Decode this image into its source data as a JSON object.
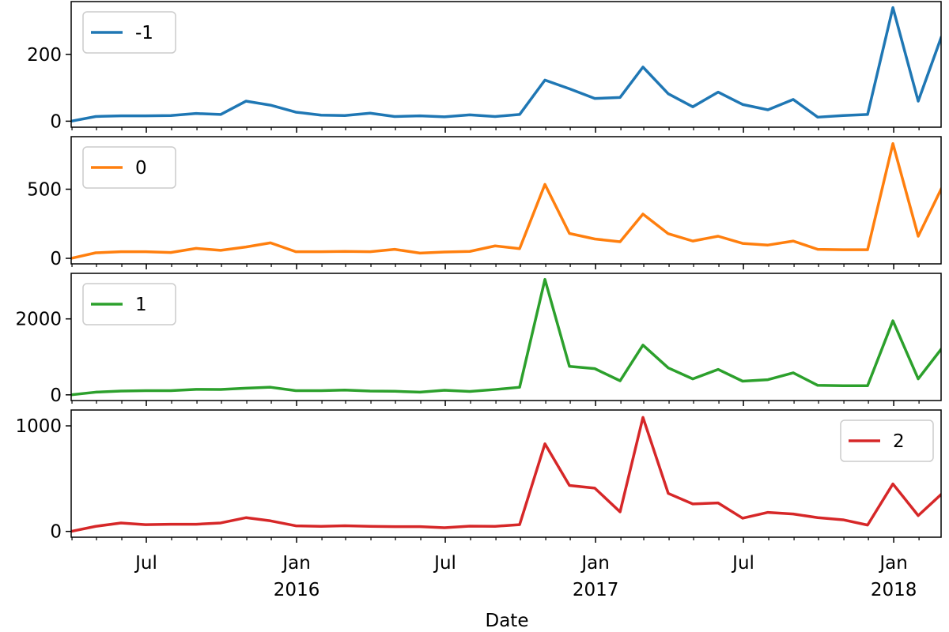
{
  "chart_data": {
    "type": "line",
    "layout": "stacked-subplots",
    "sharex": true,
    "xlabel": "Date",
    "x": [
      "2015-03-31",
      "2015-04-30",
      "2015-05-31",
      "2015-06-30",
      "2015-07-31",
      "2015-08-31",
      "2015-09-30",
      "2015-10-31",
      "2015-11-30",
      "2015-12-31",
      "2016-01-31",
      "2016-02-29",
      "2016-03-31",
      "2016-04-30",
      "2016-05-31",
      "2016-06-30",
      "2016-07-31",
      "2016-08-31",
      "2016-09-30",
      "2016-10-31",
      "2016-11-30",
      "2016-12-31",
      "2017-01-31",
      "2017-02-28",
      "2017-03-31",
      "2017-04-30",
      "2017-05-31",
      "2017-06-30",
      "2017-07-31",
      "2017-08-31",
      "2017-09-30",
      "2017-10-31",
      "2017-11-30",
      "2017-12-31",
      "2018-01-31",
      "2018-02-28"
    ],
    "xlim": [
      "2015-03-31",
      "2018-02-28"
    ],
    "x_major_ticks": [
      {
        "date": "2015-07-01",
        "label": "Jul"
      },
      {
        "date": "2016-01-01",
        "label": "Jan\n2016"
      },
      {
        "date": "2016-07-01",
        "label": "Jul"
      },
      {
        "date": "2017-01-01",
        "label": "Jan\n2017"
      },
      {
        "date": "2017-07-01",
        "label": "Jul"
      },
      {
        "date": "2018-01-01",
        "label": "Jan\n2018"
      }
    ],
    "panels": [
      {
        "series": {
          "name": "-1",
          "color": "#1f77b4",
          "values": [
            0,
            14,
            16,
            16,
            17,
            23,
            20,
            60,
            48,
            27,
            18,
            17,
            24,
            14,
            16,
            13,
            19,
            14,
            20,
            123,
            97,
            68,
            71,
            162,
            82,
            43,
            87,
            50,
            34,
            65,
            12,
            17,
            20,
            340,
            60,
            250
          ]
        },
        "ylim": [
          -18,
          358
        ],
        "yticks": [
          0,
          200
        ],
        "legend_loc": "upper left"
      },
      {
        "series": {
          "name": "0",
          "color": "#ff7f0e",
          "values": [
            0,
            40,
            48,
            48,
            42,
            72,
            58,
            82,
            112,
            48,
            48,
            50,
            48,
            65,
            38,
            46,
            50,
            90,
            70,
            535,
            180,
            140,
            120,
            320,
            178,
            125,
            160,
            108,
            96,
            125,
            65,
            62,
            62,
            830,
            160,
            500
          ]
        },
        "ylim": [
          -40,
          880
        ],
        "yticks": [
          0,
          500
        ],
        "legend_loc": "upper left"
      },
      {
        "series": {
          "name": "1",
          "color": "#2ca02c",
          "values": [
            0,
            70,
            100,
            110,
            110,
            145,
            140,
            175,
            200,
            110,
            110,
            125,
            100,
            95,
            70,
            120,
            90,
            140,
            200,
            3040,
            750,
            690,
            370,
            1310,
            710,
            420,
            670,
            360,
            400,
            580,
            250,
            240,
            240,
            1950,
            420,
            1200
          ]
        },
        "ylim": [
          -150,
          3200
        ],
        "yticks": [
          0,
          2000
        ],
        "legend_loc": "upper left"
      },
      {
        "series": {
          "name": "2",
          "color": "#d62728",
          "values": [
            0,
            48,
            80,
            64,
            68,
            68,
            80,
            130,
            100,
            53,
            48,
            54,
            48,
            45,
            45,
            35,
            50,
            48,
            64,
            830,
            435,
            410,
            185,
            1080,
            360,
            260,
            270,
            125,
            180,
            165,
            130,
            110,
            60,
            450,
            150,
            350
          ]
        },
        "ylim": [
          -55,
          1150
        ],
        "yticks": [
          0,
          1000
        ],
        "legend_loc": "upper right"
      }
    ]
  }
}
